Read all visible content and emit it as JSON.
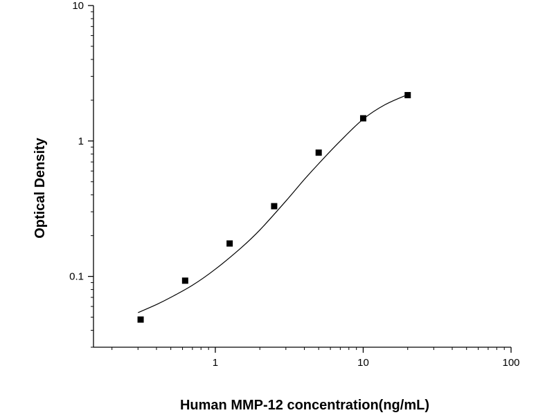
{
  "chart_data": {
    "type": "scatter",
    "title": "",
    "xlabel": "Human MMP-12 concentration(ng/mL)",
    "ylabel": "Optical Density",
    "x_scale": "log",
    "y_scale": "log",
    "xlim": [
      0.15,
      100
    ],
    "ylim": [
      0.03,
      10
    ],
    "x_ticks": [
      {
        "value": 1,
        "label": "1"
      },
      {
        "value": 10,
        "label": "10"
      },
      {
        "value": 100,
        "label": "100"
      }
    ],
    "y_ticks": [
      {
        "value": 0.1,
        "label": "0.1"
      },
      {
        "value": 1,
        "label": "1"
      },
      {
        "value": 10,
        "label": "10"
      }
    ],
    "grid": false,
    "legend": "none",
    "marker_color": "#000000",
    "series": [
      {
        "points": [
          {
            "x": 0.3125,
            "y": 0.048
          },
          {
            "x": 0.625,
            "y": 0.093
          },
          {
            "x": 1.25,
            "y": 0.175
          },
          {
            "x": 2.5,
            "y": 0.33
          },
          {
            "x": 5,
            "y": 0.82
          },
          {
            "x": 10,
            "y": 1.47
          },
          {
            "x": 20,
            "y": 2.18
          }
        ]
      }
    ],
    "fit_curve": {
      "points": [
        {
          "x": 0.3,
          "y": 0.054
        },
        {
          "x": 0.4,
          "y": 0.062
        },
        {
          "x": 0.5,
          "y": 0.07
        },
        {
          "x": 0.7,
          "y": 0.086
        },
        {
          "x": 1,
          "y": 0.113
        },
        {
          "x": 1.5,
          "y": 0.163
        },
        {
          "x": 2,
          "y": 0.22
        },
        {
          "x": 3,
          "y": 0.36
        },
        {
          "x": 4,
          "y": 0.52
        },
        {
          "x": 5,
          "y": 0.68
        },
        {
          "x": 7,
          "y": 1.0
        },
        {
          "x": 10,
          "y": 1.45
        },
        {
          "x": 14,
          "y": 1.85
        },
        {
          "x": 20,
          "y": 2.2
        }
      ]
    }
  }
}
